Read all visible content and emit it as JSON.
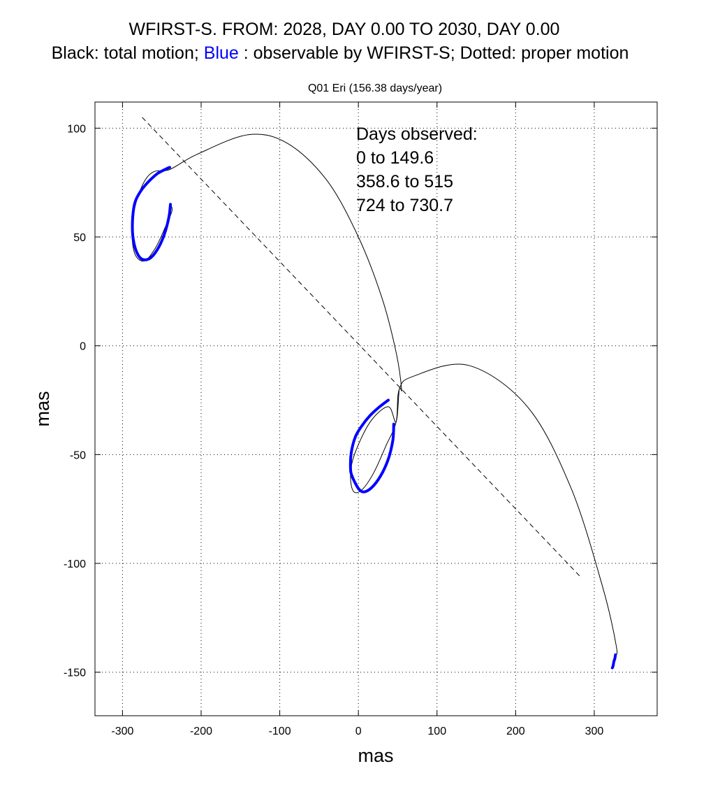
{
  "title_line1": "WFIRST-S. FROM: 2028, DAY 0.00 TO 2030, DAY 0.00",
  "title_line2": {
    "part1": "Black: total motion;",
    "part2": "Blue",
    "part3": ": observable by WFIRST-S; Dotted: proper motion",
    "highlight_color": "#0000ff"
  },
  "chart_data": {
    "type": "line",
    "title": "Q01 Eri (156.38 days/year)",
    "xlabel": "mas",
    "ylabel": "mas",
    "xlim": [
      -335,
      380
    ],
    "ylim": [
      -170,
      112
    ],
    "xticks": [
      -300,
      -200,
      -100,
      0,
      100,
      200,
      300
    ],
    "yticks": [
      100,
      50,
      0,
      -50,
      -100,
      -150
    ],
    "grid": true,
    "grid_style": "dotted",
    "series": [
      {
        "style": "dashed",
        "color": "#000000",
        "x": [
          -275,
          282
        ],
        "y": [
          105,
          -106
        ]
      },
      {
        "style": "solid-thin",
        "color": "#000000",
        "x": [
          -239,
          -237,
          -245,
          -258,
          -272,
          -284,
          -288,
          -284,
          -273,
          -260,
          -240,
          -205,
          -140,
          -90,
          -40,
          0,
          30,
          48,
          55,
          52,
          48,
          38,
          15,
          -5,
          -10,
          -6,
          5,
          20,
          35,
          48,
          52,
          70,
          140,
          215,
          270,
          310,
          328,
          326,
          322
        ],
        "y": [
          65,
          62,
          55,
          45,
          39,
          42,
          52,
          64,
          75,
          80,
          81,
          88,
          97,
          93,
          76,
          50,
          22,
          -3,
          -20,
          -20,
          -35,
          -28,
          -35,
          -50,
          -60,
          -67,
          -66,
          -58,
          -46,
          -35,
          -20,
          -14,
          -9,
          -28,
          -65,
          -110,
          -138,
          -143,
          -148
        ]
      },
      {
        "style": "solid-thick",
        "color": "#0000ff",
        "x": [
          -239,
          -241,
          -247,
          -256,
          -266,
          -276,
          -283,
          -287,
          -287,
          -284,
          -277,
          -268,
          -256,
          -246,
          -240
        ],
        "y": [
          65,
          59,
          51,
          44,
          40,
          40,
          44,
          51,
          59,
          66,
          71,
          75,
          79,
          81,
          82
        ]
      },
      {
        "style": "solid-thick",
        "color": "#0000ff",
        "x": [
          45,
          44,
          39,
          31,
          20,
          9,
          1,
          -8,
          -10,
          -9,
          -4,
          4,
          15,
          27,
          38
        ],
        "y": [
          -36,
          -43,
          -51,
          -58,
          -64,
          -67,
          -66,
          -60,
          -56,
          -49,
          -42,
          -37,
          -32,
          -28,
          -25
        ]
      },
      {
        "style": "solid-thick",
        "color": "#0000ff",
        "x": [
          327,
          326,
          325,
          324,
          323
        ],
        "y": [
          -142,
          -144,
          -145,
          -147,
          -148
        ]
      }
    ],
    "annotations": {
      "line1": "Days observed:",
      "line2": "0 to 149.6",
      "line3": "358.6 to 515",
      "line4": "724 to 730.7"
    }
  }
}
